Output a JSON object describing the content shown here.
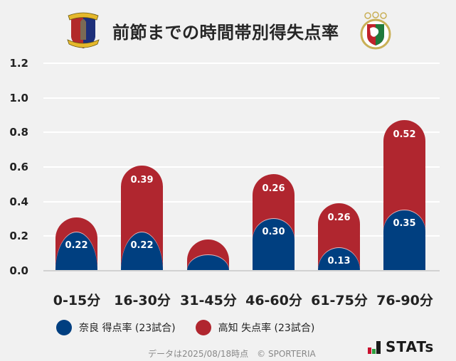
{
  "header": {
    "title": "前節までの時間帯別得失点率",
    "home_logo": "nara-club-crest",
    "away_logo": "kochi-united-crest"
  },
  "chart_data": {
    "type": "bar",
    "stacked": true,
    "title": "前節までの時間帯別得失点率",
    "categories": [
      "0-15分",
      "16-30分",
      "31-45分",
      "46-60分",
      "61-75分",
      "76-90分"
    ],
    "series": [
      {
        "name": "奈良 得点率 (23試合)",
        "color": "#003f80",
        "values": [
          0.22,
          0.22,
          0.09,
          0.3,
          0.13,
          0.35
        ],
        "labels": [
          "0.22",
          "0.22",
          "",
          "0.30",
          "0.13",
          "0.35"
        ]
      },
      {
        "name": "高知 失点率 (23試合)",
        "color": "#b0262f",
        "values": [
          0.09,
          0.39,
          0.09,
          0.26,
          0.26,
          0.52
        ],
        "labels": [
          "",
          "0.39",
          "",
          "0.26",
          "0.26",
          "0.52"
        ]
      }
    ],
    "yticks": [
      "0.0",
      "0.2",
      "0.4",
      "0.6",
      "0.8",
      "1.0",
      "1.2"
    ],
    "ylim": [
      0,
      1.2
    ],
    "grid": true,
    "legend_position": "bottom",
    "xlabel": "",
    "ylabel": ""
  },
  "legend": [
    {
      "label": "奈良 得点率 (23試合)",
      "color": "#003f80"
    },
    {
      "label": "高知 失点率 (23試合)",
      "color": "#b0262f"
    }
  ],
  "footer": {
    "note": "データは2025/08/18時点　© SPORTERIA",
    "brand": "STATs",
    "brand_bar_colors": [
      "#c8102e",
      "#2e9e3e",
      "#1a1a1a"
    ]
  }
}
